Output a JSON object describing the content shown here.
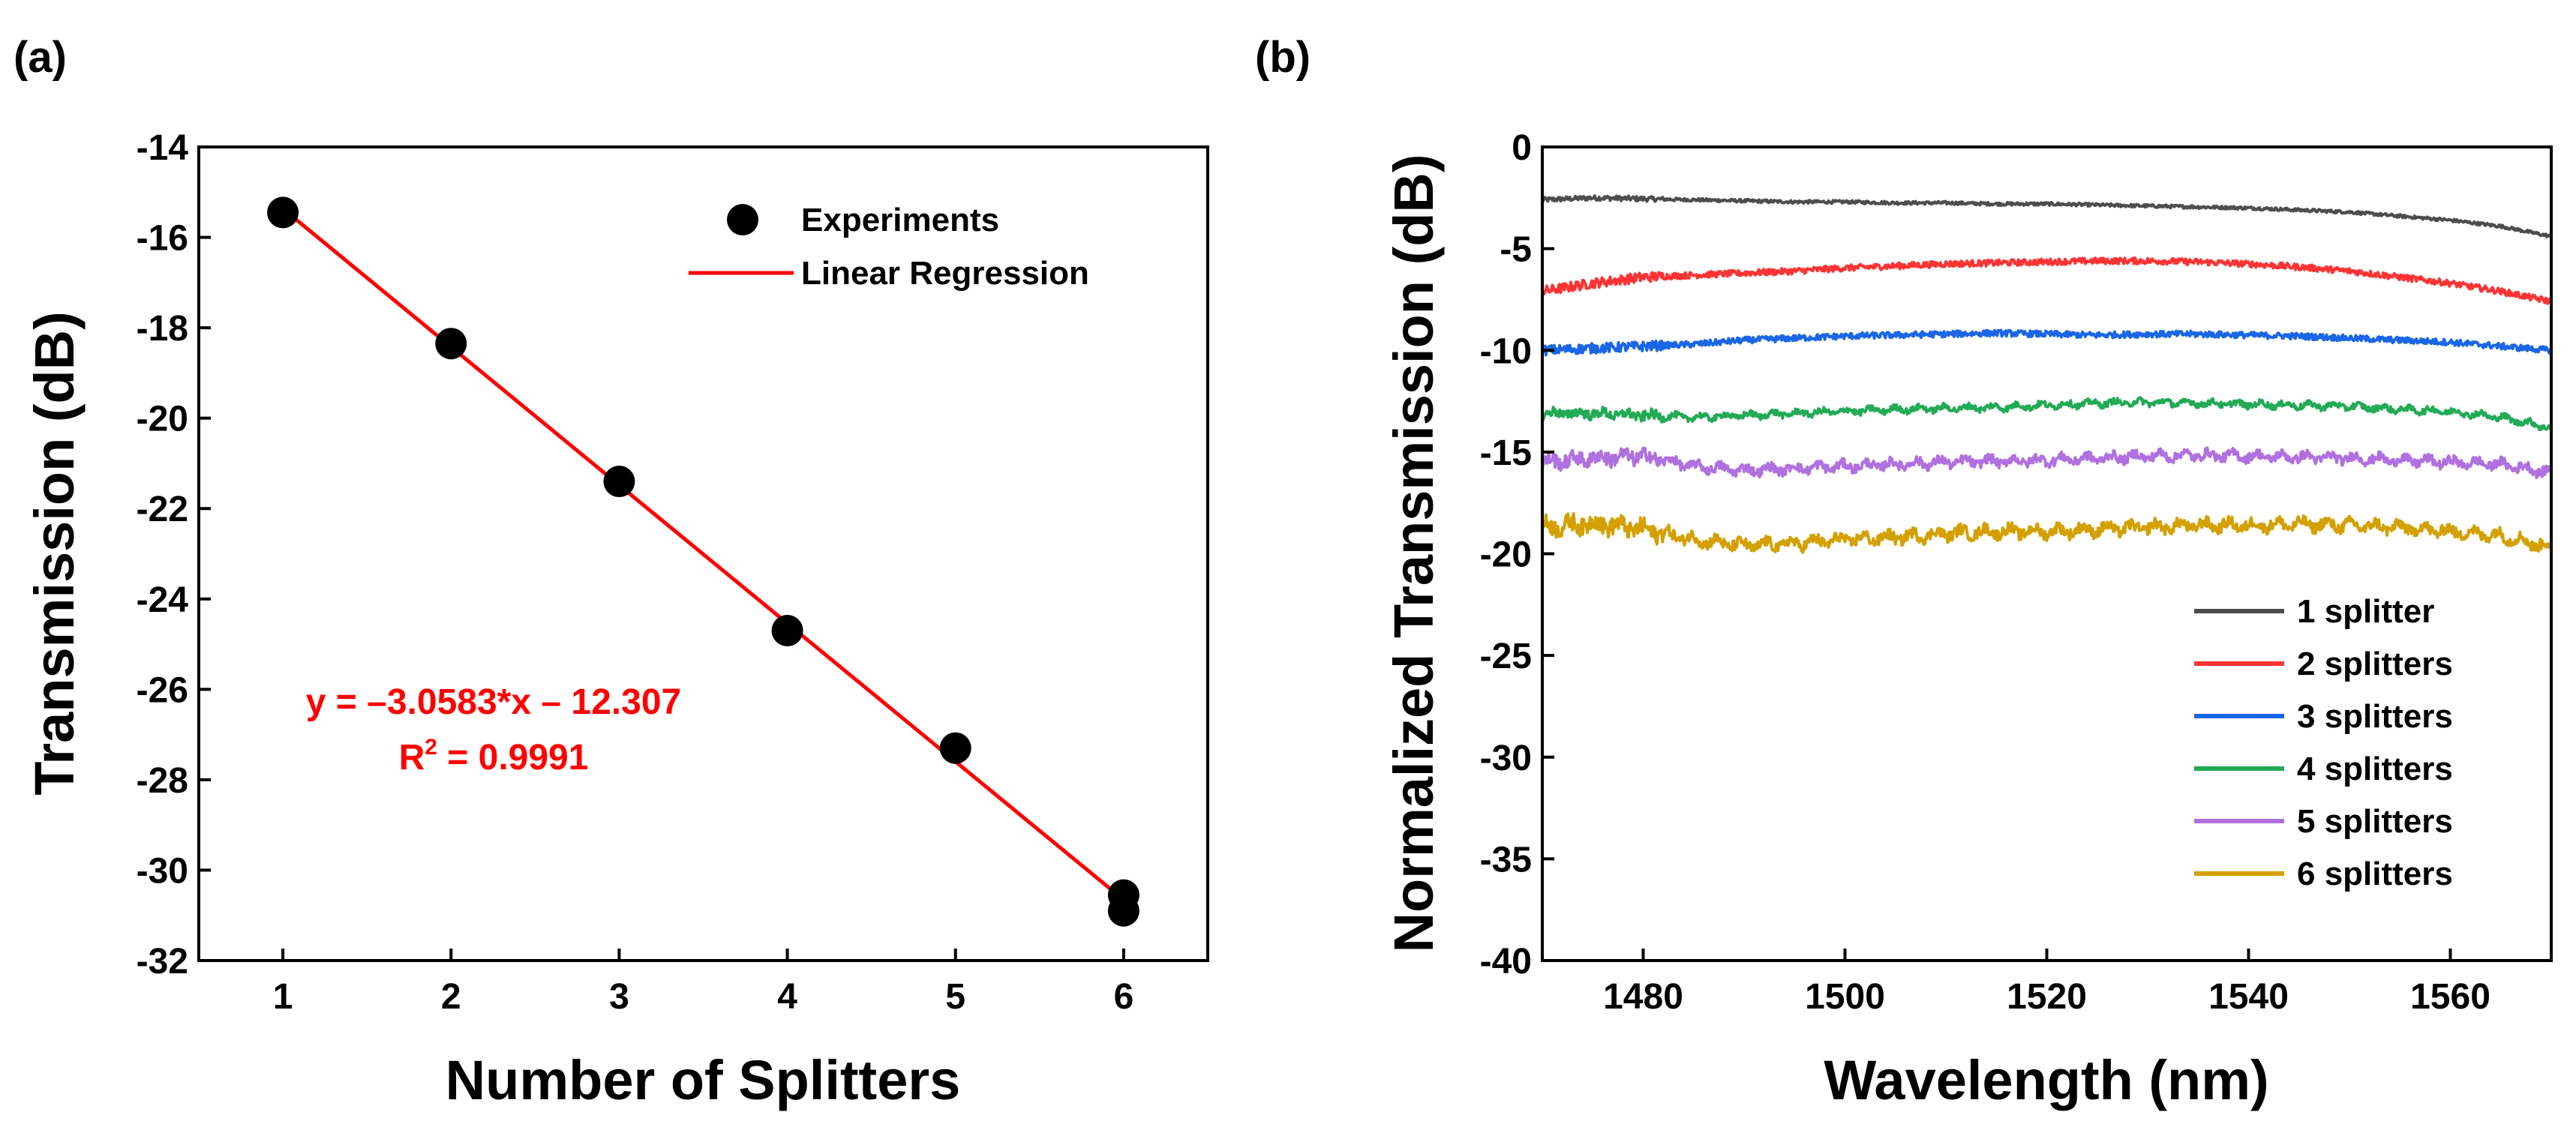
{
  "chart_data": [
    {
      "panel_label": "(a)",
      "type": "scatter",
      "xlabel": "Number of Splitters",
      "ylabel": "Transmission (dB)",
      "xlim": [
        0.5,
        6.5
      ],
      "ylim": [
        -32,
        -14
      ],
      "x_ticks": [
        1,
        2,
        3,
        4,
        5,
        6
      ],
      "y_ticks": [
        -32,
        -30,
        -28,
        -26,
        -24,
        -22,
        -20,
        -18,
        -16,
        -14
      ],
      "grid": false,
      "legend_position": "top-right",
      "series": [
        {
          "name": "Experiments",
          "kind": "scatter",
          "color": "#000000",
          "x": [
            1,
            2,
            3,
            4,
            5,
            6,
            6
          ],
          "y": [
            -15.45,
            -18.35,
            -21.4,
            -24.7,
            -27.3,
            -30.55,
            -30.9
          ]
        },
        {
          "name": "Linear Regression",
          "kind": "line",
          "color": "#ff0000",
          "slope": -3.0583,
          "intercept": -12.307,
          "x": [
            1,
            6
          ]
        }
      ],
      "annotation": {
        "equation": "y = –3.0583*x – 12.307",
        "r_squared": "R",
        "r_squared_sup": "2",
        "r_squared_value": " = 0.9991",
        "color": "#ff0000"
      }
    },
    {
      "panel_label": "(b)",
      "type": "line",
      "xlabel": "Wavelength (nm)",
      "ylabel": "Normalized Transmission (dB)",
      "xlim": [
        1470,
        1570
      ],
      "ylim": [
        -40,
        0
      ],
      "x_ticks": [
        1480,
        1500,
        1520,
        1540,
        1560
      ],
      "y_ticks": [
        0,
        -5,
        -10,
        -15,
        -20,
        -25,
        -30,
        -35,
        -40
      ],
      "grid": false,
      "legend_position": "bottom-right",
      "x_samples": [
        1470,
        1475,
        1480,
        1485,
        1490,
        1495,
        1500,
        1505,
        1510,
        1515,
        1520,
        1525,
        1530,
        1535,
        1540,
        1545,
        1550,
        1555,
        1560,
        1565,
        1570
      ],
      "series": [
        {
          "name": "1 splitter",
          "color": "#4d4d4d",
          "noise": 0.15,
          "values": [
            -2.6,
            -2.5,
            -2.55,
            -2.6,
            -2.65,
            -2.7,
            -2.7,
            -2.75,
            -2.75,
            -2.8,
            -2.8,
            -2.85,
            -2.9,
            -2.95,
            -3.0,
            -3.1,
            -3.2,
            -3.4,
            -3.6,
            -3.9,
            -4.4
          ]
        },
        {
          "name": "2 splitters",
          "color": "#ff3333",
          "noise": 0.3,
          "values": [
            -7.1,
            -6.7,
            -6.4,
            -6.3,
            -6.2,
            -6.1,
            -5.95,
            -5.85,
            -5.75,
            -5.7,
            -5.65,
            -5.6,
            -5.6,
            -5.65,
            -5.75,
            -5.9,
            -6.1,
            -6.4,
            -6.7,
            -7.1,
            -7.6
          ]
        },
        {
          "name": "3 splitters",
          "color": "#1a66e6",
          "noise": 0.3,
          "values": [
            -10.0,
            -9.9,
            -9.8,
            -9.7,
            -9.5,
            -9.4,
            -9.3,
            -9.25,
            -9.2,
            -9.15,
            -9.2,
            -9.25,
            -9.2,
            -9.2,
            -9.25,
            -9.3,
            -9.4,
            -9.5,
            -9.6,
            -9.8,
            -10.0
          ]
        },
        {
          "name": "4 splitters",
          "color": "#22aa55",
          "noise": 0.3,
          "values": [
            -13.1,
            -13.1,
            -13.2,
            -13.3,
            -13.2,
            -13.1,
            -13.0,
            -12.9,
            -12.85,
            -12.8,
            -12.7,
            -12.6,
            -12.55,
            -12.6,
            -12.65,
            -12.7,
            -12.75,
            -12.9,
            -13.0,
            -13.3,
            -13.8
          ]
        },
        {
          "name": "5 splitters",
          "color": "#b070e0",
          "noise": 0.45,
          "values": [
            -15.5,
            -15.3,
            -15.2,
            -15.7,
            -15.9,
            -15.8,
            -15.7,
            -15.6,
            -15.5,
            -15.45,
            -15.4,
            -15.3,
            -15.2,
            -15.15,
            -15.2,
            -15.25,
            -15.3,
            -15.4,
            -15.5,
            -15.6,
            -16.0
          ]
        },
        {
          "name": "6 splitters",
          "color": "#d4a000",
          "noise": 0.55,
          "values": [
            -18.7,
            -18.5,
            -18.8,
            -19.3,
            -19.6,
            -19.5,
            -19.3,
            -19.2,
            -19.0,
            -18.9,
            -18.9,
            -18.8,
            -18.7,
            -18.6,
            -18.6,
            -18.55,
            -18.6,
            -18.7,
            -18.9,
            -19.1,
            -19.7
          ]
        }
      ]
    }
  ]
}
